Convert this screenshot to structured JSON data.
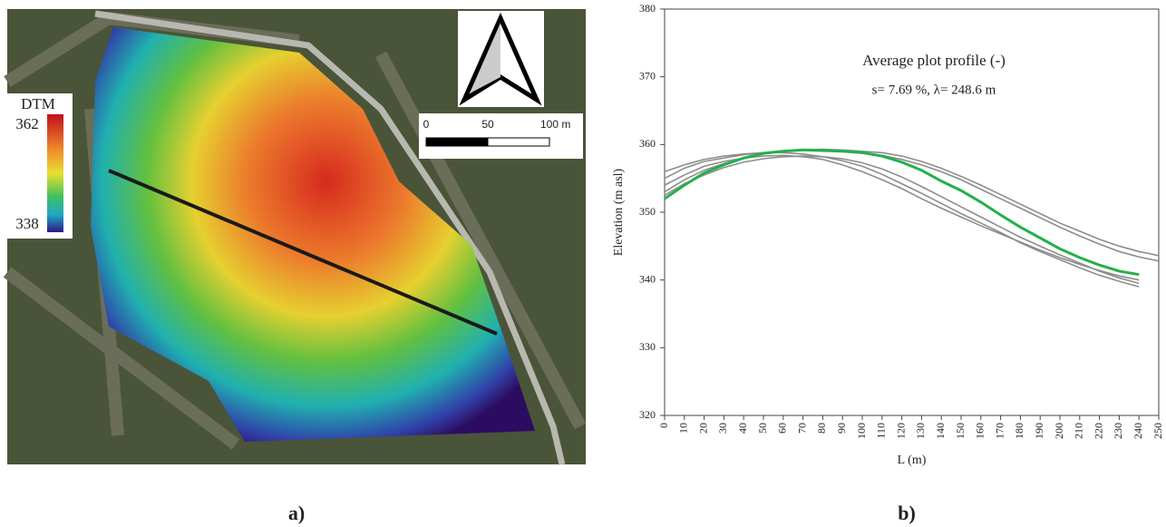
{
  "figure_labels": [
    "a)",
    "b)"
  ],
  "map": {
    "colorbar": {
      "title": "DTM",
      "max": 362,
      "min": 338
    },
    "scale_bar": {
      "ticks": [
        0,
        50,
        {
          "value": 100,
          "label": "100 m"
        }
      ]
    }
  },
  "chart_data": {
    "type": "line",
    "title": "Average plot profile (-)",
    "subtitle": "s= 7.69 %,  λ= 248.6 m",
    "x_label": "L (m)",
    "y_label": "Elevation (m asl)",
    "x": [
      0,
      10,
      20,
      30,
      40,
      50,
      60,
      70,
      80,
      90,
      100,
      110,
      120,
      130,
      140,
      150,
      160,
      170,
      180,
      190,
      200,
      210,
      220,
      230,
      240,
      250
    ],
    "xlim": [
      0,
      250
    ],
    "xticks": [
      0,
      10,
      20,
      30,
      40,
      50,
      60,
      70,
      80,
      90,
      100,
      110,
      120,
      130,
      140,
      150,
      160,
      170,
      180,
      190,
      200,
      210,
      220,
      230,
      240,
      250
    ],
    "ylim": [
      320,
      380
    ],
    "yticks": [
      320,
      330,
      340,
      350,
      360,
      370,
      380
    ],
    "series": [
      {
        "color": "#8c8c8c",
        "values": [
          355,
          356.5,
          357.5,
          358,
          358.5,
          358.8,
          359,
          359.2,
          359.3,
          359.2,
          359,
          358.8,
          358.3,
          357.5,
          356.5,
          355.3,
          354,
          352.6,
          351.2,
          349.8,
          348.4,
          347.2,
          346,
          345,
          344.2,
          343.6
        ]
      },
      {
        "color": "#8c8c8c",
        "values": [
          354,
          355.5,
          356.8,
          357.5,
          358,
          358.3,
          358.4,
          358.2,
          357.8,
          357,
          356,
          354.8,
          353.5,
          352,
          350.6,
          349.3,
          348,
          346.8,
          345.6,
          344.4,
          343.3,
          342.3,
          341.4,
          340.6,
          340,
          null
        ]
      },
      {
        "color": "#8c8c8c",
        "values": [
          356,
          357,
          357.8,
          358.3,
          358.6,
          358.8,
          358.8,
          358.6,
          358.2,
          357.6,
          356.8,
          355.6,
          354.2,
          352.8,
          351.3,
          349.8,
          348.4,
          347,
          345.5,
          344.2,
          343,
          341.8,
          340.7,
          339.8,
          339,
          null
        ]
      },
      {
        "color": "#8c8c8c",
        "values": [
          353,
          354.8,
          356.2,
          357.2,
          358,
          358.6,
          359,
          359.2,
          359.2,
          359,
          358.7,
          358.4,
          357.8,
          357,
          356,
          354.8,
          353.4,
          352,
          350.6,
          349.2,
          347.8,
          346.5,
          345.3,
          344.2,
          343.4,
          342.8
        ]
      },
      {
        "color": "#8c8c8c",
        "values": [
          352.5,
          354.2,
          355.5,
          356.6,
          357.4,
          357.9,
          358.2,
          358.3,
          358.2,
          357.9,
          357.3,
          356.4,
          355.2,
          353.8,
          352.3,
          350.8,
          349.3,
          347.8,
          346.3,
          345,
          343.7,
          342.5,
          341.3,
          340.3,
          339.5,
          null
        ]
      },
      {
        "color": "#22b04a",
        "values": [
          352,
          354,
          355.8,
          357,
          358,
          358.7,
          359,
          359.2,
          359.1,
          359,
          358.8,
          358.3,
          357.4,
          356.2,
          354.6,
          353.2,
          351.5,
          349.6,
          347.8,
          346.2,
          344.6,
          343.3,
          342.2,
          341.3,
          340.8,
          null
        ]
      }
    ]
  }
}
